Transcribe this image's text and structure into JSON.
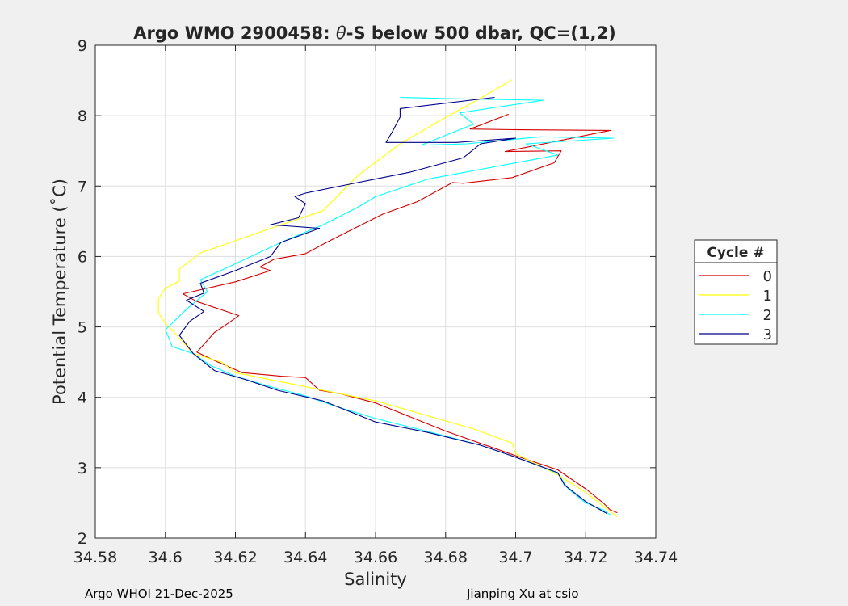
{
  "chart_data": {
    "type": "line",
    "title_parts": [
      "Argo WMO 2900458: ",
      "θ",
      "-S below 500 dbar,  QC=(1,2)"
    ],
    "xlabel": "Salinity",
    "ylabel": "Potential Temperature (˚C)",
    "xlim": [
      34.58,
      34.74
    ],
    "ylim": [
      2,
      9
    ],
    "xticks": [
      "34.58",
      "34.6",
      "34.62",
      "34.64",
      "34.66",
      "34.68",
      "34.7",
      "34.72",
      "34.74"
    ],
    "yticks": [
      "2",
      "3",
      "4",
      "5",
      "6",
      "7",
      "8",
      "9"
    ],
    "grid": true,
    "legend": {
      "title": "Cycle #",
      "position": "outside-right"
    },
    "series": [
      {
        "name": "0",
        "color": "#d40000",
        "points": [
          [
            34.698,
            8.02
          ],
          [
            34.687,
            7.81
          ],
          [
            34.701,
            7.8
          ],
          [
            34.727,
            7.79
          ],
          [
            34.697,
            7.49
          ],
          [
            34.713,
            7.5
          ],
          [
            34.711,
            7.33
          ],
          [
            34.699,
            7.12
          ],
          [
            34.685,
            7.04
          ],
          [
            34.682,
            7.05
          ],
          [
            34.672,
            6.78
          ],
          [
            34.662,
            6.6
          ],
          [
            34.65,
            6.3
          ],
          [
            34.646,
            6.2
          ],
          [
            34.64,
            6.04
          ],
          [
            34.631,
            5.96
          ],
          [
            34.627,
            5.85
          ],
          [
            34.63,
            5.8
          ],
          [
            34.62,
            5.64
          ],
          [
            34.605,
            5.47
          ],
          [
            34.609,
            5.36
          ],
          [
            34.621,
            5.16
          ],
          [
            34.617,
            5.02
          ],
          [
            34.614,
            4.92
          ],
          [
            34.609,
            4.64
          ],
          [
            34.615,
            4.5
          ],
          [
            34.622,
            4.35
          ],
          [
            34.633,
            4.3
          ],
          [
            34.64,
            4.28
          ],
          [
            34.644,
            4.1
          ],
          [
            34.65,
            4.05
          ],
          [
            34.66,
            3.92
          ],
          [
            34.68,
            3.52
          ],
          [
            34.7,
            3.17
          ],
          [
            34.712,
            2.97
          ],
          [
            34.72,
            2.7
          ],
          [
            34.725,
            2.5
          ],
          [
            34.727,
            2.4
          ],
          [
            34.729,
            2.36
          ]
        ]
      },
      {
        "name": "1",
        "color": "#ffff00",
        "points": [
          [
            34.699,
            8.51
          ],
          [
            34.69,
            8.25
          ],
          [
            34.678,
            7.92
          ],
          [
            34.667,
            7.6
          ],
          [
            34.655,
            7.15
          ],
          [
            34.645,
            6.65
          ],
          [
            34.63,
            6.4
          ],
          [
            34.61,
            6.05
          ],
          [
            34.604,
            5.82
          ],
          [
            34.604,
            5.65
          ],
          [
            34.6,
            5.55
          ],
          [
            34.598,
            5.4
          ],
          [
            34.598,
            5.2
          ],
          [
            34.6,
            5.05
          ],
          [
            34.602,
            4.95
          ],
          [
            34.608,
            4.62
          ],
          [
            34.616,
            4.5
          ],
          [
            34.62,
            4.35
          ],
          [
            34.63,
            4.25
          ],
          [
            34.64,
            4.15
          ],
          [
            34.66,
            3.95
          ],
          [
            34.688,
            3.55
          ],
          [
            34.699,
            3.35
          ],
          [
            34.7,
            3.2
          ],
          [
            34.712,
            2.9
          ],
          [
            34.72,
            2.65
          ],
          [
            34.729,
            2.3
          ]
        ]
      },
      {
        "name": "2",
        "color": "#00ffff",
        "points": [
          [
            34.667,
            8.26
          ],
          [
            34.682,
            8.24
          ],
          [
            34.708,
            8.22
          ],
          [
            34.684,
            8.04
          ],
          [
            34.688,
            7.88
          ],
          [
            34.686,
            7.84
          ],
          [
            34.679,
            7.7
          ],
          [
            34.673,
            7.58
          ],
          [
            34.686,
            7.6
          ],
          [
            34.707,
            7.7
          ],
          [
            34.728,
            7.68
          ],
          [
            34.703,
            7.6
          ],
          [
            34.712,
            7.44
          ],
          [
            34.675,
            7.1
          ],
          [
            34.666,
            6.95
          ],
          [
            34.66,
            6.85
          ],
          [
            34.655,
            6.7
          ],
          [
            34.645,
            6.45
          ],
          [
            34.633,
            6.2
          ],
          [
            34.618,
            5.85
          ],
          [
            34.61,
            5.67
          ],
          [
            34.612,
            5.5
          ],
          [
            34.606,
            5.25
          ],
          [
            34.6,
            4.96
          ],
          [
            34.602,
            4.72
          ],
          [
            34.608,
            4.62
          ],
          [
            34.613,
            4.45
          ],
          [
            34.62,
            4.3
          ],
          [
            34.63,
            4.15
          ],
          [
            34.64,
            4.02
          ],
          [
            34.65,
            3.85
          ],
          [
            34.66,
            3.7
          ],
          [
            34.68,
            3.45
          ],
          [
            34.69,
            3.32
          ],
          [
            34.7,
            3.15
          ],
          [
            34.707,
            3.02
          ],
          [
            34.712,
            2.92
          ],
          [
            34.715,
            2.7
          ],
          [
            34.72,
            2.5
          ],
          [
            34.725,
            2.4
          ],
          [
            34.727,
            2.33
          ]
        ]
      },
      {
        "name": "3",
        "color": "#00008b",
        "points": [
          [
            34.694,
            8.26
          ],
          [
            34.667,
            8.1
          ],
          [
            34.667,
            7.98
          ],
          [
            34.665,
            7.79
          ],
          [
            34.663,
            7.62
          ],
          [
            34.683,
            7.62
          ],
          [
            34.7,
            7.68
          ],
          [
            34.69,
            7.6
          ],
          [
            34.685,
            7.4
          ],
          [
            34.67,
            7.2
          ],
          [
            34.66,
            7.1
          ],
          [
            34.652,
            7.02
          ],
          [
            34.64,
            6.9
          ],
          [
            34.637,
            6.85
          ],
          [
            34.64,
            6.75
          ],
          [
            34.638,
            6.55
          ],
          [
            34.63,
            6.45
          ],
          [
            34.636,
            6.43
          ],
          [
            34.644,
            6.4
          ],
          [
            34.633,
            6.2
          ],
          [
            34.63,
            6.0
          ],
          [
            34.62,
            5.8
          ],
          [
            34.61,
            5.62
          ],
          [
            34.611,
            5.48
          ],
          [
            34.606,
            5.38
          ],
          [
            34.611,
            5.22
          ],
          [
            34.607,
            5.08
          ],
          [
            34.604,
            4.88
          ],
          [
            34.608,
            4.62
          ],
          [
            34.614,
            4.38
          ],
          [
            34.623,
            4.25
          ],
          [
            34.632,
            4.1
          ],
          [
            34.645,
            3.95
          ],
          [
            34.66,
            3.65
          ],
          [
            34.675,
            3.5
          ],
          [
            34.69,
            3.32
          ],
          [
            34.7,
            3.15
          ],
          [
            34.712,
            2.93
          ],
          [
            34.714,
            2.75
          ],
          [
            34.72,
            2.52
          ],
          [
            34.726,
            2.35
          ]
        ]
      }
    ]
  },
  "footer": {
    "left": "Argo WHOI 21-Dec-2025",
    "right": "Jianping Xu at csio"
  }
}
